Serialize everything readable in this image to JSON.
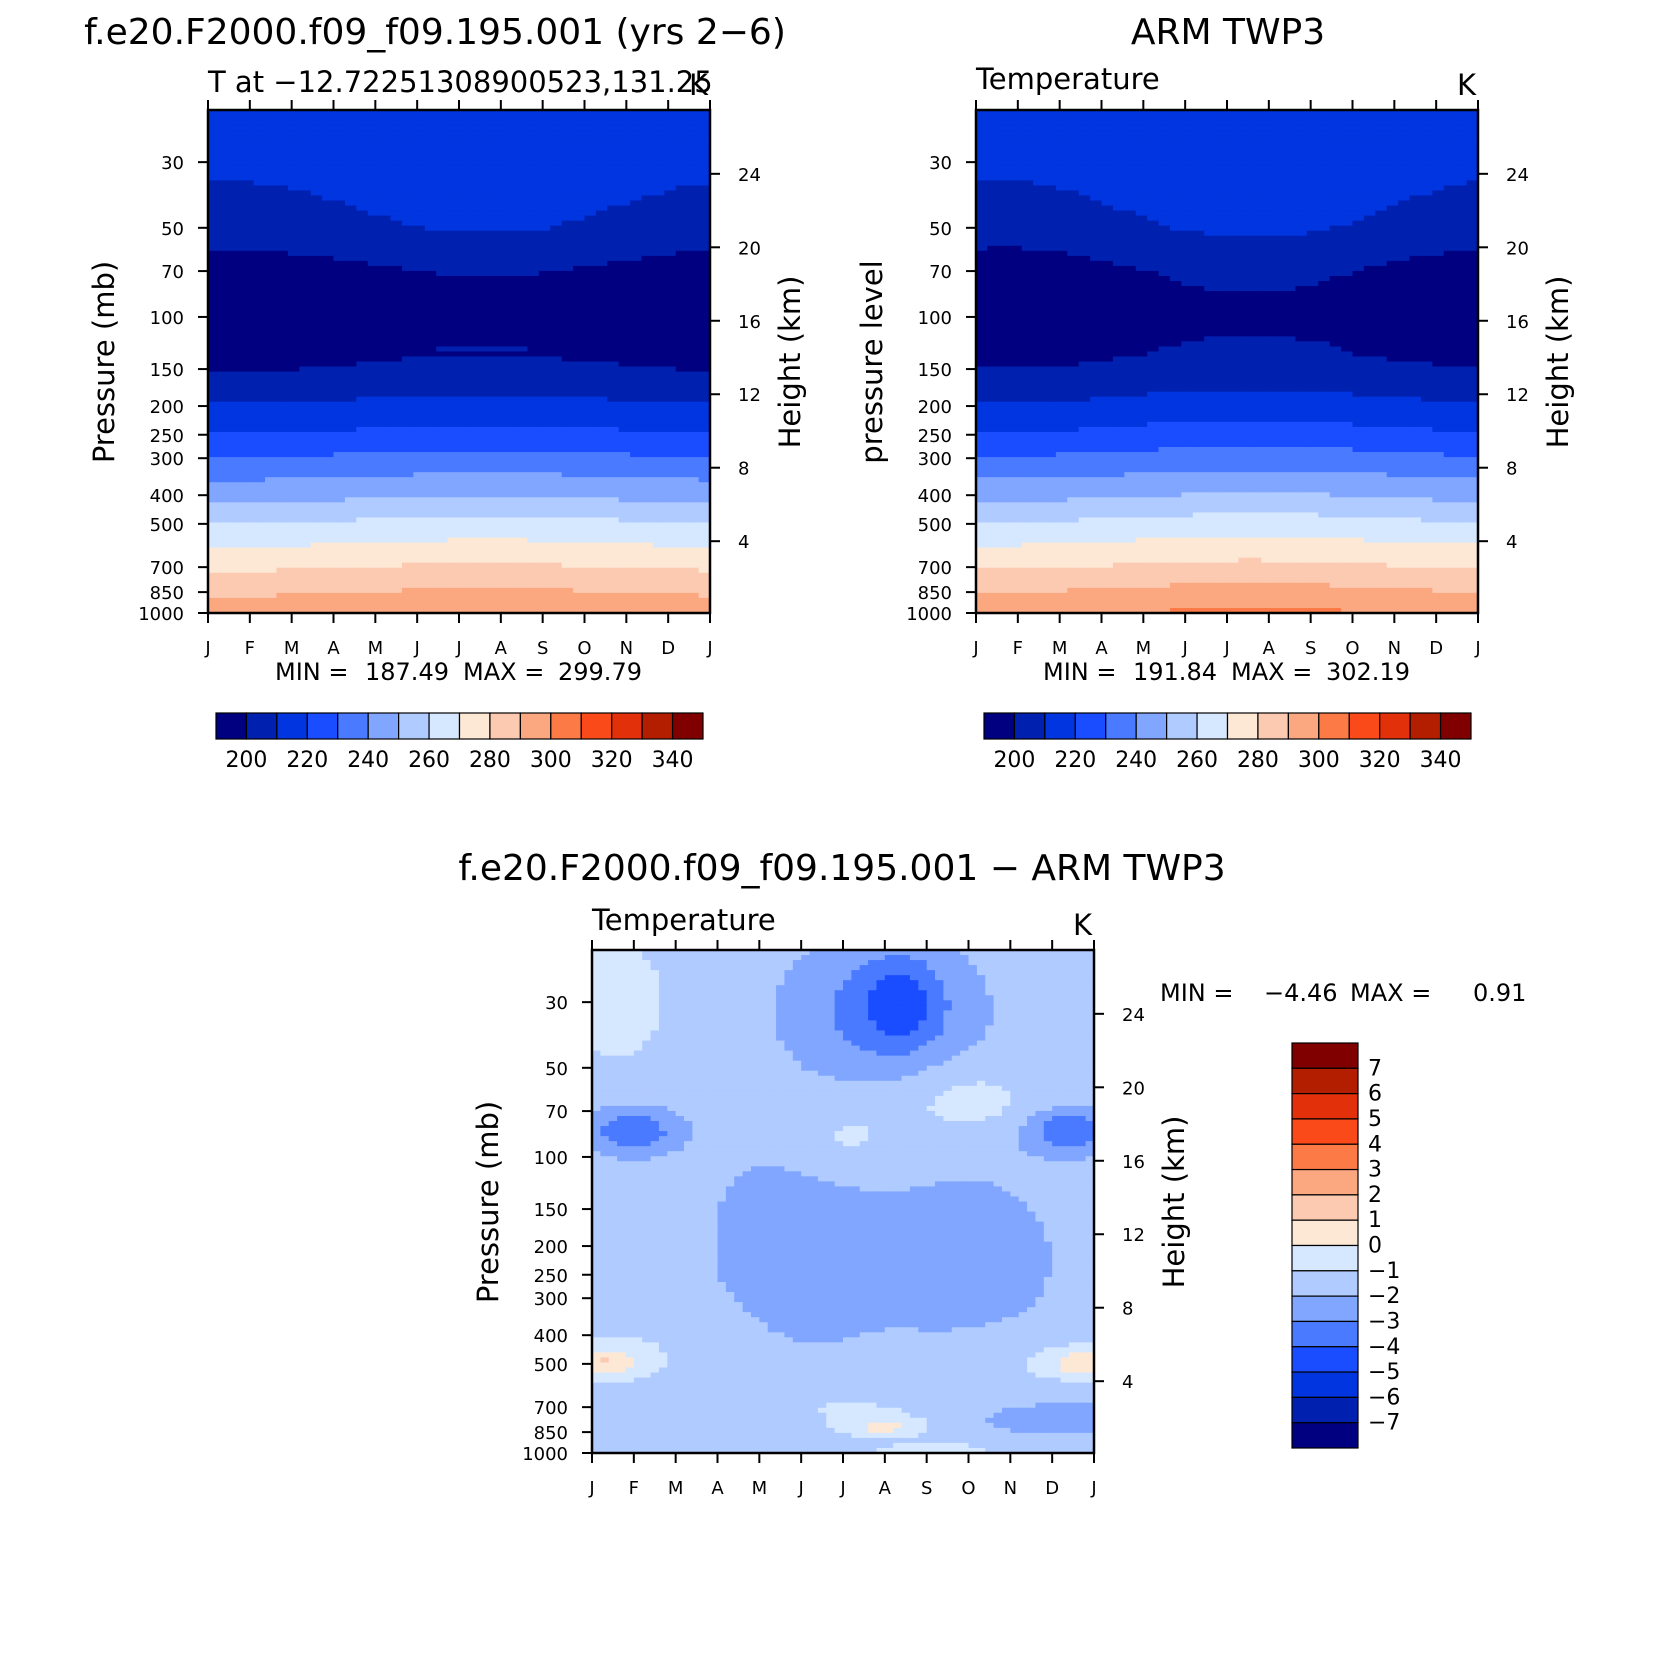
{
  "colors": {
    "abs_scale": [
      "#000080",
      "#0020b0",
      "#0035e0",
      "#1a4dff",
      "#4a7aff",
      "#80a6ff",
      "#b0cbff",
      "#d6e8ff",
      "#fde8d6",
      "#fccab0",
      "#fba880",
      "#fb7a46",
      "#fb4a1a",
      "#e2300a",
      "#b41e00",
      "#800000"
    ],
    "diff_scale": [
      "#000080",
      "#0020b0",
      "#0035e0",
      "#1a4dff",
      "#4a7aff",
      "#80a6ff",
      "#b0cbff",
      "#d6e8ff",
      "#fde8d6",
      "#fccab0",
      "#fba880",
      "#fb7a46",
      "#fb4a1a",
      "#e2300a",
      "#b41e00",
      "#800000"
    ]
  },
  "shared": {
    "month_ticks": [
      "J",
      "F",
      "M",
      "A",
      "M",
      "J",
      "J",
      "A",
      "S",
      "O",
      "N",
      "D",
      "J"
    ],
    "pressure_ticks": [
      "30",
      "50",
      "70",
      "100",
      "150",
      "200",
      "250",
      "300",
      "400",
      "500",
      "700",
      "850",
      "1000"
    ],
    "height_ticks": [
      "24",
      "20",
      "16",
      "12",
      "8",
      "4"
    ],
    "height_label": "Height (km)",
    "abs_colorbar_labels": [
      "200",
      "220",
      "240",
      "260",
      "280",
      "300",
      "320",
      "340"
    ],
    "diff_colorbar_labels": [
      "7",
      "6",
      "5",
      "4",
      "3",
      "2",
      "1",
      "0",
      "−1",
      "−2",
      "−3",
      "−4",
      "−5",
      "−6",
      "−7"
    ]
  },
  "panels": {
    "model": {
      "main_title": "f.e20.F2000.f09_f09.195.001 (yrs 2−6)",
      "left_label": "T at −12.72251308900523,131.25",
      "right_label": "K",
      "ylabel": "Pressure (mb)",
      "min_label": "MIN =",
      "min_value": "187.49",
      "max_label": "MAX =",
      "max_value": "299.79"
    },
    "obs": {
      "main_title": "ARM TWP3",
      "left_label": "Temperature",
      "right_label": "K",
      "ylabel": "pressure level",
      "min_label": "MIN =",
      "min_value": "191.84",
      "max_label": "MAX =",
      "max_value": "302.19"
    },
    "diff": {
      "main_title": "f.e20.F2000.f09_f09.195.001 − ARM TWP3",
      "left_label": "Temperature",
      "right_label": "K",
      "ylabel": "Pressure (mb)",
      "min_label": "MIN =",
      "min_value": "−4.46",
      "max_label": "MAX =",
      "max_value": "0.91"
    }
  },
  "chart_data": [
    {
      "type": "heatmap",
      "title": "f.e20.F2000.f09_f09.195.001 (yrs 2−6)",
      "subtitle": "T at −12.72251308900523,131.25",
      "units": "K",
      "x": [
        "J",
        "F",
        "M",
        "A",
        "M",
        "J",
        "J",
        "A",
        "S",
        "O",
        "N",
        "D",
        "J"
      ],
      "ylabel": "Pressure (mb)",
      "y2label": "Height (km)",
      "yscale": "log-pressure",
      "ylim": [
        1000,
        20
      ],
      "contour_levels": [
        200,
        210,
        220,
        230,
        240,
        250,
        260,
        270,
        280,
        290,
        300,
        310,
        320,
        330,
        340
      ],
      "levels_pressure": [
        30,
        50,
        70,
        100,
        150,
        200,
        250,
        300,
        400,
        500,
        700,
        850,
        1000
      ],
      "approx_values_by_level": [
        215,
        208,
        198,
        192,
        201,
        212,
        222,
        232,
        248,
        262,
        280,
        290,
        298
      ],
      "min": 187.49,
      "max": 299.79
    },
    {
      "type": "heatmap",
      "title": "ARM TWP3",
      "subtitle": "Temperature",
      "units": "K",
      "x": [
        "J",
        "F",
        "M",
        "A",
        "M",
        "J",
        "J",
        "A",
        "S",
        "O",
        "N",
        "D",
        "J"
      ],
      "ylabel": "pressure level",
      "y2label": "Height (km)",
      "yscale": "log-pressure",
      "ylim": [
        1000,
        20
      ],
      "contour_levels": [
        200,
        210,
        220,
        230,
        240,
        250,
        260,
        270,
        280,
        290,
        300,
        310,
        320,
        330,
        340
      ],
      "levels_pressure": [
        30,
        50,
        70,
        100,
        150,
        200,
        250,
        300,
        400,
        500,
        700,
        850,
        1000
      ],
      "approx_values_by_level": [
        216,
        208,
        199,
        193,
        202,
        213,
        223,
        233,
        249,
        263,
        281,
        292,
        300
      ],
      "min": 191.84,
      "max": 302.19
    },
    {
      "type": "heatmap",
      "title": "f.e20.F2000.f09_f09.195.001 − ARM TWP3",
      "subtitle": "Temperature",
      "units": "K",
      "x": [
        "J",
        "F",
        "M",
        "A",
        "M",
        "J",
        "J",
        "A",
        "S",
        "O",
        "N",
        "D",
        "J"
      ],
      "ylabel": "Pressure (mb)",
      "y2label": "Height (km)",
      "yscale": "log-pressure",
      "ylim": [
        1000,
        20
      ],
      "contour_levels": [
        -7,
        -6,
        -5,
        -4,
        -3,
        -2,
        -1,
        0,
        1,
        2,
        3,
        4,
        5,
        6,
        7
      ],
      "min": -4.46,
      "max": 0.91
    }
  ]
}
